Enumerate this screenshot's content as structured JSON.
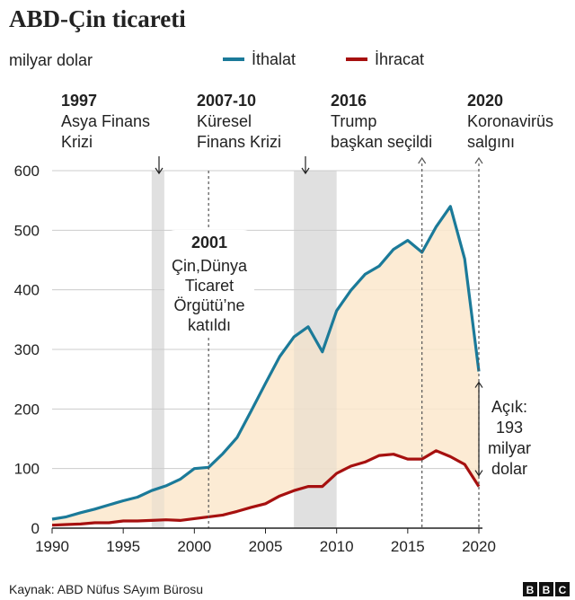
{
  "title": "ABD-Çin ticareti",
  "unit": "milyar dolar",
  "source": "Kaynak: ABD Nüfus SAyım Bürosu",
  "logo": "BBC",
  "colors": {
    "imports": "#1b7a99",
    "exports": "#a6100f",
    "gap": "#fbe8cc",
    "shade": "#e6e6e6",
    "axis": "#222222",
    "grid": "#cccccc"
  },
  "chart_data": {
    "type": "line",
    "title": "ABD-Çin ticareti",
    "ylabel": "milyar dolar",
    "xlim": [
      1990,
      2020
    ],
    "ylim": [
      0,
      600
    ],
    "xticks": [
      1990,
      1995,
      2000,
      2005,
      2010,
      2015,
      2020
    ],
    "yticks": [
      0,
      100,
      200,
      300,
      400,
      500,
      600
    ],
    "grid": "horizontal",
    "legend": "top",
    "x": [
      1990,
      1991,
      1992,
      1993,
      1994,
      1995,
      1996,
      1997,
      1998,
      1999,
      2000,
      2001,
      2002,
      2003,
      2004,
      2005,
      2006,
      2007,
      2008,
      2009,
      2010,
      2011,
      2012,
      2013,
      2014,
      2015,
      2016,
      2017,
      2018,
      2019,
      2020
    ],
    "series": [
      {
        "name": "İthalat",
        "values": [
          15,
          19,
          26,
          32,
          39,
          46,
          52,
          63,
          71,
          82,
          100,
          102,
          125,
          152,
          197,
          243,
          288,
          321,
          338,
          296,
          365,
          399,
          426,
          440,
          468,
          483,
          463,
          506,
          540,
          452,
          263
        ]
      },
      {
        "name": "İhracat",
        "values": [
          5,
          6,
          7,
          9,
          9,
          12,
          12,
          13,
          14,
          13,
          16,
          19,
          22,
          28,
          35,
          41,
          54,
          63,
          70,
          70,
          92,
          104,
          111,
          122,
          124,
          116,
          116,
          130,
          120,
          107,
          70
        ]
      }
    ],
    "shaded_periods": [
      [
        1997,
        1998
      ],
      [
        2007,
        2010
      ]
    ],
    "annotations": [
      {
        "year": "1997",
        "lines": [
          "Asya Finans",
          "Krizi"
        ]
      },
      {
        "year": "2007-10",
        "lines": [
          "Küresel",
          "Finans Krizi"
        ]
      },
      {
        "year": "2016",
        "lines": [
          "Trump",
          "başkan seçildi"
        ]
      },
      {
        "year": "2020",
        "lines": [
          "Koronavirüs",
          "salgını"
        ]
      },
      {
        "year": "2001",
        "lines": [
          "Çin,Dünya",
          "Ticaret",
          "Örgütü’ne",
          "katıldı"
        ]
      }
    ],
    "gap_label": [
      "Açık:",
      "193",
      "milyar",
      "dolar"
    ]
  }
}
